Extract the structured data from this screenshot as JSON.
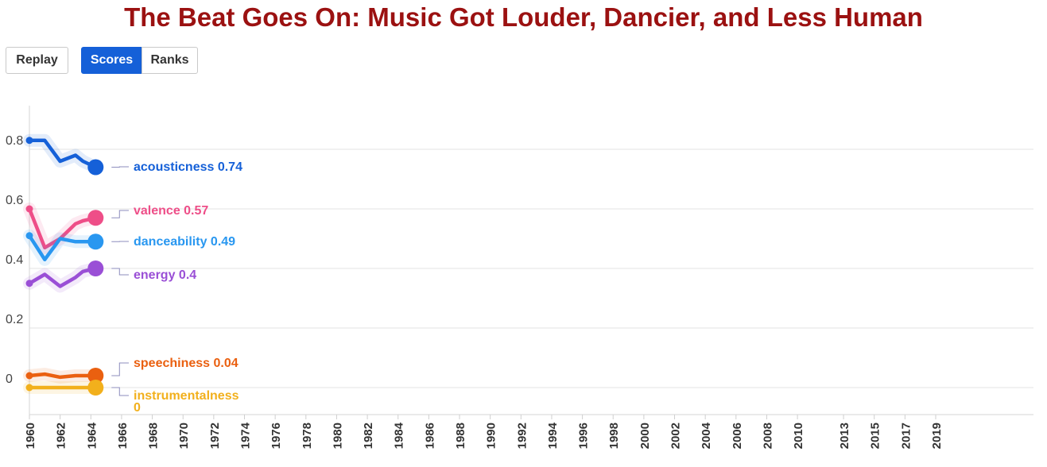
{
  "title": "The Beat Goes On: Music Got Louder, Dancier, and Less Human",
  "controls": {
    "replay_label": "Replay",
    "scores_label": "Scores",
    "ranks_label": "Ranks",
    "active_mode": "Scores"
  },
  "chart_data": {
    "type": "line",
    "x_tick_labels": [
      "1960",
      "1962",
      "1964",
      "1966",
      "1968",
      "1970",
      "1972",
      "1974",
      "1976",
      "1978",
      "1980",
      "1982",
      "1984",
      "1986",
      "1988",
      "1990",
      "1992",
      "1994",
      "1996",
      "1998",
      "2000",
      "2002",
      "2004",
      "2006",
      "2008",
      "2010",
      "2013",
      "2015",
      "2017",
      "2019"
    ],
    "y_tick_labels": [
      "0",
      "0.2",
      "0.4",
      "0.6",
      "0.8"
    ],
    "ylim": [
      -0.09,
      0.94
    ],
    "grid": true,
    "x": [
      1960,
      1961,
      1962,
      1963,
      1964
    ],
    "series": [
      {
        "name": "acousticness",
        "value_label": "acousticness 0.74",
        "color": "#1560d8",
        "values": [
          0.83,
          0.83,
          0.76,
          0.78,
          0.76
        ],
        "last": 0.74
      },
      {
        "name": "valence",
        "value_label": "valence 0.57",
        "color": "#ee4e88",
        "values": [
          0.6,
          0.47,
          0.5,
          0.55,
          0.56
        ],
        "last": 0.57
      },
      {
        "name": "danceability",
        "value_label": "danceability 0.49",
        "color": "#2997f0",
        "values": [
          0.51,
          0.43,
          0.5,
          0.49,
          0.49
        ],
        "last": 0.49
      },
      {
        "name": "energy",
        "value_label": "energy 0.4",
        "color": "#9a4fd6",
        "values": [
          0.35,
          0.38,
          0.34,
          0.37,
          0.39
        ],
        "last": 0.4
      },
      {
        "name": "speechiness",
        "value_label": "speechiness 0.04",
        "color": "#ea6010",
        "values": [
          0.04,
          0.045,
          0.035,
          0.04,
          0.04
        ],
        "last": 0.04
      },
      {
        "name": "instrumentalness",
        "value_label_lines": [
          "instrumentalness",
          "0"
        ],
        "color": "#f2b01c",
        "values": [
          0.0,
          0.0,
          0.0,
          0.0,
          0.0
        ],
        "last": 0.0
      }
    ]
  }
}
